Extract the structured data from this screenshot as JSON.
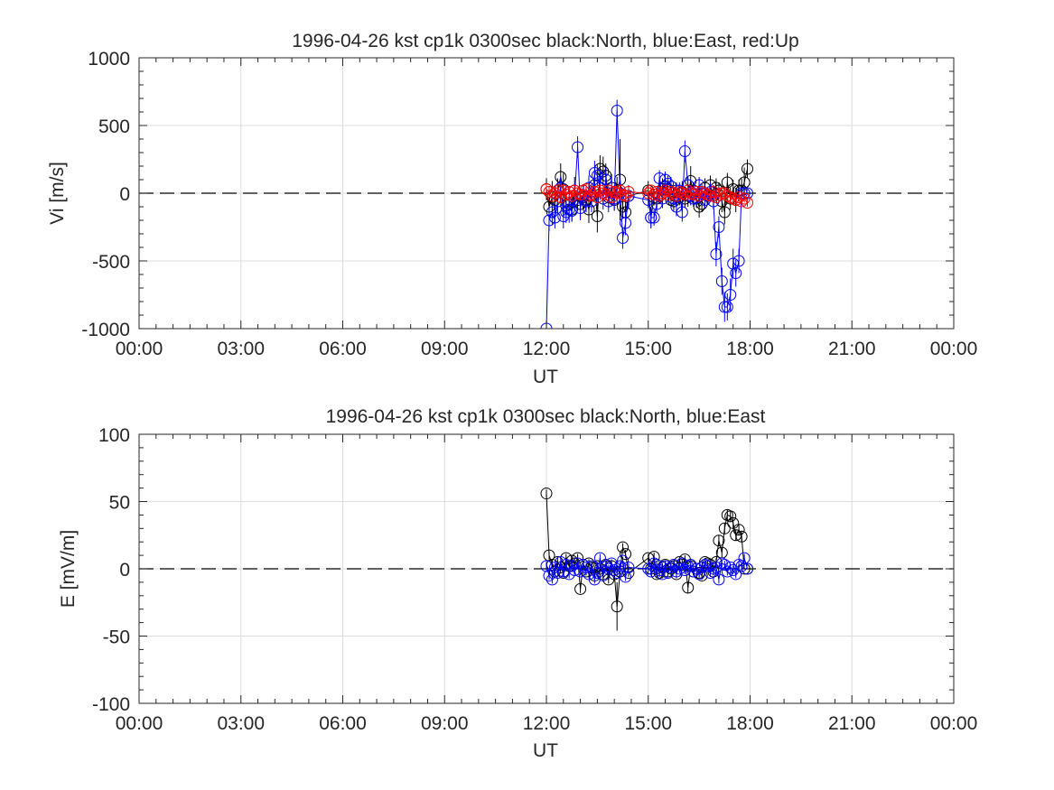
{
  "chart_data": [
    {
      "type": "scatter",
      "title": "1996-04-26 kst cp1k 0300sec black:North, blue:East, red:Up",
      "xlabel": "UT",
      "ylabel": "Vi [m/s]",
      "xlim": [
        0,
        24
      ],
      "ylim": [
        -1000,
        1000
      ],
      "xticks": [
        0,
        3,
        6,
        9,
        12,
        15,
        18,
        21,
        24
      ],
      "xticklabels": [
        "00:00",
        "03:00",
        "06:00",
        "09:00",
        "12:00",
        "15:00",
        "18:00",
        "21:00",
        "00:00"
      ],
      "yticks": [
        -1000,
        -500,
        0,
        500,
        1000
      ],
      "yticklabels": [
        "-1000",
        "-500",
        "0",
        "500",
        "1000"
      ],
      "grid": true,
      "reference_line": 0,
      "series": [
        {
          "name": "North",
          "color": "#000000",
          "x": [
            12.0,
            12.08,
            12.17,
            12.25,
            12.33,
            12.42,
            12.5,
            12.58,
            12.67,
            12.75,
            12.83,
            12.92,
            13.0,
            13.08,
            13.17,
            13.25,
            13.33,
            13.42,
            13.5,
            13.58,
            13.67,
            13.75,
            13.83,
            13.92,
            14.0,
            14.08,
            14.17,
            14.25,
            14.33,
            14.42,
            15.0,
            15.08,
            15.17,
            15.25,
            15.33,
            15.42,
            15.5,
            15.58,
            15.67,
            15.75,
            15.83,
            15.92,
            16.0,
            16.08,
            16.17,
            16.25,
            16.33,
            16.42,
            16.5,
            16.58,
            16.67,
            16.75,
            16.83,
            16.92,
            17.0,
            17.08,
            17.17,
            17.25,
            17.33,
            17.42,
            17.5,
            17.58,
            17.67,
            17.75,
            17.83,
            17.92
          ],
          "y": [
            30,
            -100,
            -30,
            -50,
            20,
            120,
            30,
            -90,
            -80,
            -120,
            20,
            -50,
            -80,
            -30,
            -50,
            -120,
            -20,
            60,
            -170,
            180,
            160,
            130,
            -30,
            40,
            -50,
            20,
            100,
            -100,
            -140,
            -20,
            20,
            -180,
            -30,
            -40,
            -20,
            30,
            50,
            30,
            -50,
            -60,
            20,
            -30,
            10,
            -40,
            -20,
            90,
            20,
            -40,
            -100,
            -80,
            40,
            -20,
            60,
            -20,
            40,
            20,
            -60,
            -140,
            80,
            -40,
            30,
            -50,
            20,
            20,
            80,
            180
          ],
          "yerr": [
            80,
            100,
            120,
            100,
            90,
            100,
            120,
            80,
            100,
            90,
            100,
            80,
            100,
            90,
            80,
            100,
            90,
            100,
            120,
            100,
            110,
            90,
            80,
            100,
            80,
            100,
            300,
            90,
            80,
            70,
            70,
            80,
            60,
            70,
            60,
            80,
            70,
            60,
            60,
            70,
            60,
            60,
            80,
            70,
            80,
            110,
            60,
            70,
            80,
            60,
            70,
            60,
            70,
            80,
            70,
            60,
            80,
            90,
            70,
            80,
            70,
            90,
            80,
            90,
            110,
            70
          ]
        },
        {
          "name": "East",
          "color": "#0000ff",
          "x": [
            12.0,
            12.08,
            12.17,
            12.25,
            12.33,
            12.42,
            12.5,
            12.58,
            12.67,
            12.75,
            12.83,
            12.92,
            13.0,
            13.08,
            13.17,
            13.25,
            13.33,
            13.42,
            13.5,
            13.58,
            13.67,
            13.75,
            13.83,
            13.92,
            14.0,
            14.08,
            14.17,
            14.25,
            14.33,
            14.42,
            15.0,
            15.08,
            15.17,
            15.25,
            15.33,
            15.42,
            15.5,
            15.58,
            15.67,
            15.75,
            15.83,
            15.92,
            16.0,
            16.08,
            16.17,
            16.25,
            16.33,
            16.42,
            16.5,
            16.58,
            16.67,
            16.75,
            16.83,
            16.92,
            17.0,
            17.08,
            17.17,
            17.25,
            17.33,
            17.42,
            17.5,
            17.58,
            17.67,
            17.75,
            17.83,
            17.92
          ],
          "y": [
            -1000,
            -200,
            -140,
            -180,
            -60,
            40,
            -170,
            -140,
            -120,
            -130,
            -20,
            340,
            -110,
            -20,
            -60,
            40,
            -60,
            150,
            130,
            40,
            -40,
            100,
            -60,
            0,
            -40,
            610,
            0,
            -330,
            -220,
            -20,
            -50,
            -180,
            -180,
            -80,
            110,
            -40,
            100,
            70,
            50,
            -40,
            -100,
            20,
            -140,
            310,
            60,
            -20,
            -40,
            -30,
            60,
            0,
            -50,
            -20,
            10,
            -60,
            -450,
            -250,
            -650,
            -840,
            -840,
            -750,
            -520,
            -590,
            -500,
            0,
            0,
            0
          ],
          "yerr": [
            0,
            80,
            90,
            80,
            90,
            80,
            90,
            80,
            100,
            80,
            90,
            80,
            90,
            80,
            80,
            90,
            80,
            90,
            80,
            90,
            80,
            90,
            80,
            90,
            80,
            80,
            90,
            80,
            90,
            80,
            60,
            70,
            60,
            70,
            60,
            70,
            60,
            60,
            70,
            60,
            70,
            60,
            70,
            80,
            60,
            70,
            60,
            70,
            60,
            70,
            60,
            60,
            70,
            60,
            90,
            80,
            100,
            110,
            100,
            120,
            110,
            100,
            90,
            0,
            0,
            0
          ]
        },
        {
          "name": "Up",
          "color": "#ff0000",
          "x": [
            12.0,
            12.08,
            12.17,
            12.25,
            12.33,
            12.42,
            12.5,
            12.58,
            12.67,
            12.75,
            12.83,
            12.92,
            13.0,
            13.08,
            13.17,
            13.25,
            13.33,
            13.42,
            13.5,
            13.58,
            13.67,
            13.75,
            13.83,
            13.92,
            14.0,
            14.08,
            14.17,
            14.25,
            14.33,
            14.42,
            15.0,
            15.08,
            15.17,
            15.25,
            15.33,
            15.42,
            15.5,
            15.58,
            15.67,
            15.75,
            15.83,
            15.92,
            16.0,
            16.08,
            16.17,
            16.25,
            16.33,
            16.42,
            16.5,
            16.58,
            16.67,
            16.75,
            16.83,
            16.92,
            17.0,
            17.08,
            17.17,
            17.25,
            17.33,
            17.42,
            17.5,
            17.58,
            17.67,
            17.75,
            17.83,
            17.92
          ],
          "y": [
            30,
            10,
            -20,
            0,
            20,
            -30,
            20,
            -10,
            10,
            -20,
            20,
            0,
            -10,
            20,
            30,
            -20,
            -10,
            10,
            -30,
            20,
            0,
            -10,
            20,
            -30,
            10,
            0,
            20,
            -10,
            -20,
            10,
            0,
            20,
            -10,
            10,
            -20,
            0,
            20,
            -10,
            10,
            0,
            -20,
            10,
            0,
            -10,
            20,
            0,
            -10,
            10,
            -20,
            10,
            0,
            -10,
            -20,
            10,
            -30,
            -10,
            0,
            0,
            -20,
            -30,
            -40,
            -50,
            -30,
            -60,
            -40,
            -70
          ],
          "yerr": [
            40,
            40,
            40,
            40,
            40,
            40,
            40,
            40,
            40,
            40,
            40,
            40,
            40,
            40,
            40,
            40,
            40,
            40,
            40,
            40,
            40,
            40,
            40,
            40,
            40,
            40,
            40,
            40,
            40,
            40,
            30,
            30,
            30,
            30,
            30,
            30,
            30,
            30,
            30,
            30,
            30,
            30,
            30,
            30,
            30,
            30,
            30,
            30,
            30,
            30,
            30,
            30,
            30,
            30,
            30,
            30,
            30,
            30,
            30,
            30,
            30,
            30,
            30,
            30,
            30,
            30
          ]
        }
      ]
    },
    {
      "type": "scatter",
      "title": "1996-04-26 kst cp1k 0300sec black:North, blue:East",
      "xlabel": "UT",
      "ylabel": "E [mV/m]",
      "xlim": [
        0,
        24
      ],
      "ylim": [
        -100,
        100
      ],
      "xticks": [
        0,
        3,
        6,
        9,
        12,
        15,
        18,
        21,
        24
      ],
      "xticklabels": [
        "00:00",
        "03:00",
        "06:00",
        "09:00",
        "12:00",
        "15:00",
        "18:00",
        "21:00",
        "00:00"
      ],
      "yticks": [
        -100,
        -50,
        0,
        50,
        100
      ],
      "yticklabels": [
        "-100",
        "-50",
        "0",
        "50",
        "100"
      ],
      "grid": true,
      "reference_line": 0,
      "series": [
        {
          "name": "North",
          "color": "#000000",
          "x": [
            12.0,
            12.08,
            12.17,
            12.25,
            12.33,
            12.42,
            12.5,
            12.58,
            12.67,
            12.75,
            12.83,
            12.92,
            13.0,
            13.08,
            13.17,
            13.25,
            13.33,
            13.42,
            13.5,
            13.58,
            13.67,
            13.75,
            13.83,
            13.92,
            14.0,
            14.08,
            14.17,
            14.25,
            14.33,
            14.42,
            15.0,
            15.08,
            15.17,
            15.25,
            15.33,
            15.42,
            15.5,
            15.58,
            15.67,
            15.75,
            15.83,
            15.92,
            16.0,
            16.08,
            16.17,
            16.25,
            16.33,
            16.42,
            16.5,
            16.58,
            16.67,
            16.75,
            16.83,
            16.92,
            17.0,
            17.08,
            17.17,
            17.25,
            17.33,
            17.42,
            17.5,
            17.58,
            17.67,
            17.75,
            17.83,
            17.92
          ],
          "y": [
            56,
            10,
            3,
            -2,
            5,
            1,
            -3,
            8,
            2,
            6,
            4,
            8,
            -15,
            3,
            -2,
            4,
            1,
            -5,
            2,
            0,
            -4,
            3,
            -8,
            2,
            -4,
            -28,
            -2,
            16,
            11,
            -3,
            8,
            0,
            9,
            -4,
            -3,
            1,
            3,
            -2,
            0,
            2,
            -4,
            5,
            3,
            7,
            -14,
            2,
            -2,
            0,
            -3,
            -5,
            5,
            4,
            3,
            -2,
            5,
            21,
            12,
            30,
            40,
            39,
            34,
            25,
            29,
            24,
            0,
            0
          ],
          "yerr": [
            3,
            3,
            3,
            3,
            3,
            3,
            3,
            3,
            3,
            3,
            3,
            3,
            3,
            3,
            3,
            3,
            3,
            3,
            3,
            3,
            3,
            3,
            3,
            3,
            3,
            18,
            3,
            3,
            3,
            3,
            3,
            3,
            3,
            3,
            3,
            3,
            3,
            3,
            3,
            3,
            3,
            3,
            3,
            3,
            4,
            3,
            3,
            3,
            3,
            3,
            3,
            3,
            3,
            3,
            3,
            4,
            4,
            4,
            4,
            4,
            4,
            4,
            4,
            4,
            0,
            0
          ]
        },
        {
          "name": "East",
          "color": "#0000ff",
          "x": [
            12.0,
            12.08,
            12.17,
            12.25,
            12.33,
            12.42,
            12.5,
            12.58,
            12.67,
            12.75,
            12.83,
            12.92,
            13.0,
            13.08,
            13.17,
            13.25,
            13.33,
            13.42,
            13.5,
            13.58,
            13.67,
            13.75,
            13.83,
            13.92,
            14.0,
            14.08,
            14.17,
            14.25,
            14.33,
            14.42,
            15.0,
            15.08,
            15.17,
            15.25,
            15.33,
            15.42,
            15.5,
            15.58,
            15.67,
            15.75,
            15.83,
            15.92,
            16.0,
            16.08,
            16.17,
            16.25,
            16.33,
            16.42,
            16.5,
            16.58,
            16.67,
            16.75,
            16.83,
            16.92,
            17.0,
            17.08,
            17.17,
            17.25,
            17.33,
            17.42,
            17.5,
            17.58,
            17.67,
            17.75,
            17.83,
            17.92
          ],
          "y": [
            2,
            -5,
            -8,
            1,
            -3,
            5,
            -2,
            3,
            -4,
            2,
            -1,
            4,
            -2,
            3,
            1,
            -4,
            2,
            -8,
            -3,
            8,
            -5,
            2,
            0,
            4,
            -1,
            -3,
            2,
            6,
            -6,
            1,
            0,
            -2,
            4,
            3,
            -1,
            -4,
            2,
            -3,
            1,
            3,
            -2,
            0,
            4,
            -1,
            2,
            3,
            -2,
            0,
            -4,
            1,
            3,
            2,
            -3,
            0,
            1,
            -8,
            4,
            3,
            -2,
            1,
            -1,
            -4,
            3,
            2,
            8,
            0
          ],
          "yerr": [
            3,
            3,
            3,
            3,
            3,
            3,
            3,
            3,
            3,
            3,
            3,
            3,
            3,
            3,
            3,
            3,
            3,
            3,
            3,
            3,
            3,
            3,
            3,
            3,
            3,
            3,
            3,
            3,
            3,
            3,
            3,
            3,
            3,
            3,
            3,
            3,
            3,
            3,
            3,
            3,
            3,
            3,
            3,
            3,
            3,
            3,
            3,
            3,
            3,
            3,
            3,
            3,
            3,
            3,
            3,
            3,
            3,
            3,
            3,
            3,
            3,
            3,
            3,
            3,
            3,
            0
          ]
        }
      ]
    }
  ]
}
